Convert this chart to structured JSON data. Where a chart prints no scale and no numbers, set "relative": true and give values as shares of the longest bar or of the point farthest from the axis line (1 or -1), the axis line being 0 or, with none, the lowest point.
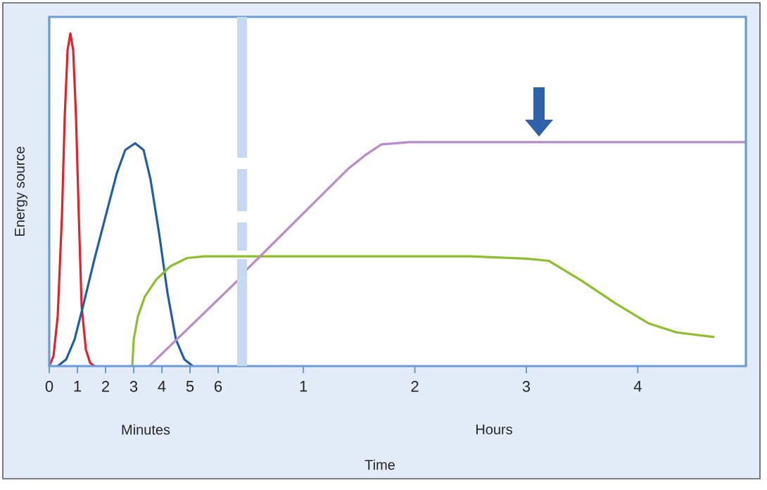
{
  "chart_data": [
    {
      "type": "line",
      "relative": true,
      "ylabel": "Energy source",
      "xlabel": "Minutes",
      "xlim": [
        0,
        6.85
      ],
      "xticks": [
        0,
        1,
        2,
        3,
        4,
        5,
        6
      ],
      "grid": false,
      "series": [
        {
          "color": "#e8202a",
          "x": [
            0,
            0.15,
            0.3,
            0.45,
            0.55,
            0.65,
            0.75,
            0.85,
            0.95,
            1.05,
            1.15,
            1.3,
            1.45,
            1.6
          ],
          "values": [
            0,
            0.03,
            0.15,
            0.45,
            0.75,
            0.95,
            1,
            0.95,
            0.75,
            0.45,
            0.18,
            0.05,
            0.01,
            0
          ]
        },
        {
          "color": "#1f5fa8",
          "x": [
            0.3,
            0.6,
            0.9,
            1.2,
            1.6,
            2.0,
            2.4,
            2.7,
            3.05,
            3.35,
            3.6,
            3.9,
            4.2,
            4.5,
            4.8,
            5.1
          ],
          "values": [
            0,
            0.02,
            0.08,
            0.18,
            0.32,
            0.45,
            0.58,
            0.65,
            0.67,
            0.65,
            0.56,
            0.4,
            0.22,
            0.08,
            0.02,
            0
          ]
        },
        {
          "color": "#8cbf2e",
          "x": [
            2.95,
            3.0,
            3.15,
            3.4,
            3.8,
            4.3,
            4.9,
            5.5,
            6.85
          ],
          "values": [
            0,
            0.08,
            0.15,
            0.21,
            0.26,
            0.3,
            0.325,
            0.33,
            0.33
          ]
        },
        {
          "color": "#b88cc8",
          "x": [
            3.55,
            6.85
          ],
          "values": [
            0,
            0.27
          ]
        }
      ]
    },
    {
      "type": "line",
      "relative": true,
      "xlabel": "Hours",
      "xlim": [
        0.45,
        4.97
      ],
      "xticks": [
        1,
        2,
        3,
        4
      ],
      "annotations": [
        "Time"
      ],
      "grid": false,
      "series": [
        {
          "color": "#8cbf2e",
          "x": [
            0.45,
            1.5,
            2.5,
            3.0,
            3.2,
            3.5,
            3.8,
            4.1,
            4.35,
            4.68
          ],
          "values": [
            0.49,
            0.49,
            0.49,
            0.48,
            0.47,
            0.38,
            0.28,
            0.19,
            0.15,
            0.13
          ]
        },
        {
          "color": "#b88cc8",
          "x": [
            0.45,
            1.4,
            1.55,
            1.7,
            1.95,
            4.97
          ],
          "values": [
            0.41,
            0.88,
            0.94,
            0.99,
            1,
            1
          ]
        }
      ]
    }
  ]
}
